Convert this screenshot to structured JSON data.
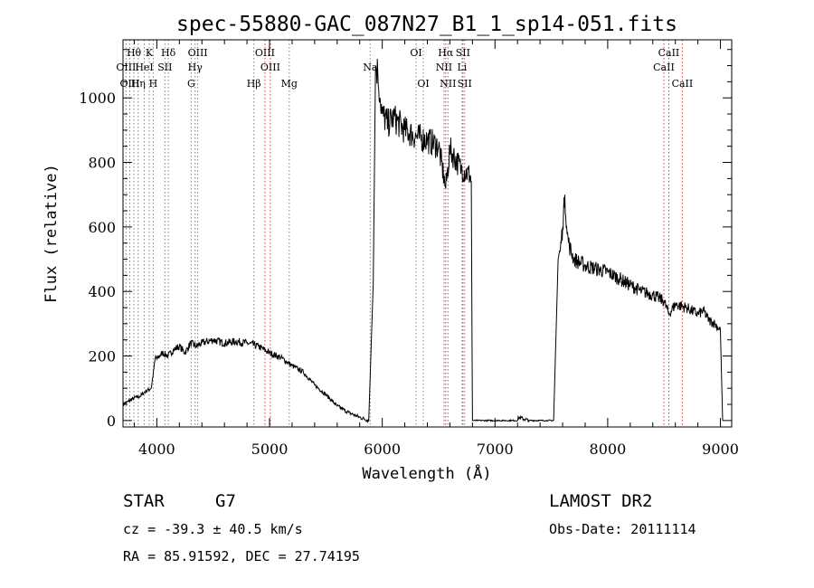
{
  "chart_data": {
    "type": "line",
    "title": "spec-55880-GAC_087N27_B1_1_sp14-051.fits",
    "xlabel": "Wavelength (Å)",
    "ylabel": "Flux (relative)",
    "xlim": [
      3700,
      9100
    ],
    "ylim": [
      -20,
      1180
    ],
    "xticks": [
      4000,
      5000,
      6000,
      7000,
      8000,
      9000
    ],
    "yticks": [
      0,
      200,
      400,
      600,
      800,
      1000
    ],
    "grid": false,
    "series": [
      {
        "x": [
          3700,
          3750,
          3800,
          3850,
          3900,
          3950,
          3990,
          4000,
          4050,
          4100,
          4150,
          4200,
          4250,
          4300,
          4350,
          4400,
          4500,
          4600,
          4700,
          4800,
          4900,
          5000,
          5100,
          5200,
          5300,
          5400,
          5500,
          5600,
          5700,
          5800,
          5880,
          5920,
          5940,
          5960,
          5980,
          6000,
          6050,
          6100,
          6200,
          6300,
          6400,
          6500,
          6563,
          6600,
          6700,
          6780,
          6790,
          6800,
          6810,
          6850,
          7000,
          7200,
          7210,
          7300,
          7400,
          7520,
          7540,
          7560,
          7580,
          7600,
          7620,
          7640,
          7660,
          7700,
          7800,
          7900,
          8000,
          8100,
          8200,
          8300,
          8400,
          8500,
          8542,
          8600,
          8700,
          8800,
          8850,
          8900,
          8950,
          9000,
          9020
        ],
        "y": [
          50,
          60,
          70,
          75,
          90,
          100,
          200,
          190,
          210,
          200,
          220,
          230,
          210,
          240,
          230,
          240,
          250,
          240,
          245,
          240,
          230,
          210,
          195,
          170,
          150,
          110,
          80,
          45,
          25,
          10,
          0,
          430,
          1100,
          1080,
          1000,
          950,
          920,
          940,
          900,
          880,
          870,
          850,
          720,
          840,
          780,
          760,
          740,
          0,
          0,
          0,
          0,
          0,
          10,
          0,
          0,
          0,
          250,
          500,
          530,
          600,
          700,
          580,
          540,
          500,
          480,
          470,
          460,
          440,
          420,
          400,
          390,
          370,
          330,
          360,
          350,
          330,
          340,
          310,
          300,
          280,
          0
        ]
      }
    ],
    "lines": [
      {
        "label": "Hθ",
        "x": 3797,
        "row": 1,
        "color": "#808080"
      },
      {
        "label": "OIII",
        "x": 3727,
        "row": 2,
        "color": "#808080"
      },
      {
        "label": "OIII",
        "x": 3760,
        "row": 3,
        "color": "#808080"
      },
      {
        "label": "Hη",
        "x": 3835,
        "row": 3,
        "color": "#808080"
      },
      {
        "label": "K",
        "x": 3933,
        "row": 1,
        "color": "#808080"
      },
      {
        "label": "HeI",
        "x": 3889,
        "row": 2,
        "color": "#808080"
      },
      {
        "label": "SII",
        "x": 4072,
        "row": 2,
        "color": "#808080"
      },
      {
        "label": "H",
        "x": 3968,
        "row": 3,
        "color": "#808080"
      },
      {
        "label": "Hδ",
        "x": 4102,
        "row": 1,
        "color": "#808080"
      },
      {
        "label": "OIII",
        "x": 4363,
        "row": 1,
        "color": "#808080"
      },
      {
        "label": "Hγ",
        "x": 4340,
        "row": 2,
        "color": "#808080"
      },
      {
        "label": "G",
        "x": 4305,
        "row": 3,
        "color": "#808080"
      },
      {
        "label": "OIII",
        "x": 4959,
        "row": 1,
        "color": "#c04040"
      },
      {
        "label": "OIII",
        "x": 5007,
        "row": 2,
        "color": "#c04040"
      },
      {
        "label": "Hβ",
        "x": 4861,
        "row": 3,
        "color": "#808080"
      },
      {
        "label": "Mg",
        "x": 5175,
        "row": 3,
        "color": "#808080"
      },
      {
        "label": "Na",
        "x": 5893,
        "row": 2,
        "color": "#808080"
      },
      {
        "label": "OI",
        "x": 6300,
        "row": 1,
        "color": "#808080"
      },
      {
        "label": "OI",
        "x": 6364,
        "row": 3,
        "color": "#808080"
      },
      {
        "label": "Hα",
        "x": 6563,
        "row": 1,
        "color": "#c04040"
      },
      {
        "label": "SII",
        "x": 6716,
        "row": 1,
        "color": "#c04040"
      },
      {
        "label": "NII",
        "x": 6548,
        "row": 2,
        "color": "#808080"
      },
      {
        "label": "Li",
        "x": 6708,
        "row": 2,
        "color": "#808080"
      },
      {
        "label": "NII",
        "x": 6583,
        "row": 3,
        "color": "#808080"
      },
      {
        "label": "SII",
        "x": 6731,
        "row": 3,
        "color": "#808080"
      },
      {
        "label": "CaII",
        "x": 8542,
        "row": 1,
        "color": "#c04040"
      },
      {
        "label": "CaII",
        "x": 8498,
        "row": 2,
        "color": "#c04040"
      },
      {
        "label": "CaII",
        "x": 8662,
        "row": 3,
        "color": "#c04040"
      }
    ]
  },
  "info": {
    "class": "STAR",
    "subclass": "G7",
    "survey": "LAMOST DR2",
    "cz": "cz = -39.3 ± 40.5 km/s",
    "obs_date": "Obs-Date: 20111114",
    "coords": "RA =  85.91592, DEC =  27.74195"
  }
}
